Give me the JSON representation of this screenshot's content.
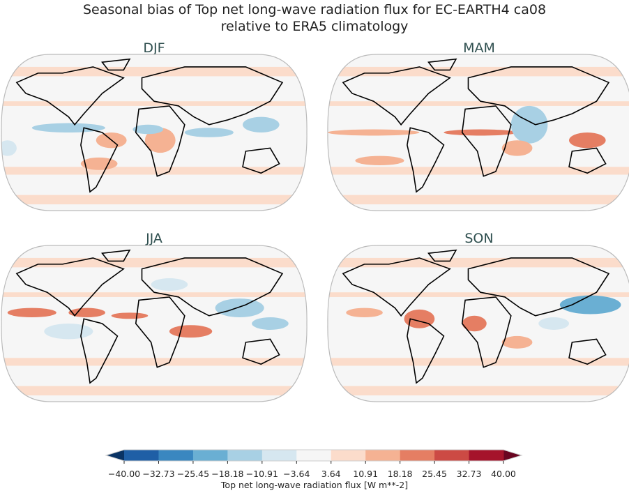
{
  "title_line1": "Seasonal bias of Top net long-wave radiation flux for EC-EARTH4 ca08",
  "title_line2": "relative to ERA5 climatology",
  "panels": [
    {
      "label": "DJF"
    },
    {
      "label": "MAM"
    },
    {
      "label": "JJA"
    },
    {
      "label": "SON"
    }
  ],
  "colorbar": {
    "label": "Top net long-wave radiation flux [W m**-2]",
    "ticks": [
      "−40.00",
      "−32.73",
      "−25.45",
      "−18.18",
      "−10.91",
      "−3.64",
      "3.64",
      "10.91",
      "18.18",
      "25.45",
      "32.73",
      "40.00"
    ],
    "colors": [
      "#1f5fa6",
      "#3a87c0",
      "#6aafd3",
      "#a8d0e4",
      "#d6e7f0",
      "#f6f6f6",
      "#fbdccb",
      "#f5b293",
      "#e57e63",
      "#cc4a44",
      "#a5132b"
    ],
    "under_color": "#0a3364",
    "over_color": "#690521",
    "extend": "both"
  }
}
